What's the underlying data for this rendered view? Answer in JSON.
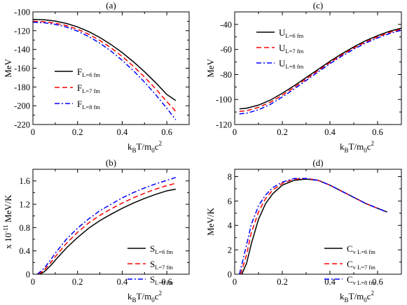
{
  "chart_data": [
    {
      "type": "line",
      "panel": "(a)",
      "title": "(a)",
      "ylabel": "MeV",
      "xlabel": {
        "main": "k",
        "sub1": "B",
        "mid": "T/m",
        "sub2": "0",
        "tail": "c",
        "sup": "2"
      },
      "xlim": [
        0,
        0.7
      ],
      "ylim": [
        -220,
        -100
      ],
      "xticks": [
        0,
        0.2,
        0.4,
        0.6
      ],
      "xtick_labels": [
        "0",
        "0.2",
        "0.4",
        "0.6"
      ],
      "yticks": [
        -220,
        -200,
        -180,
        -160,
        -140,
        -120,
        -100
      ],
      "ytick_labels": [
        "-220",
        "-200",
        "-180",
        "-160",
        "-140",
        "-120",
        "-100"
      ],
      "legend_position": "bottom-left",
      "series": [
        {
          "name": "F",
          "sub": "L=6 fm",
          "color": "#000000",
          "dash": "",
          "x": [
            0.0,
            0.05,
            0.1,
            0.15,
            0.2,
            0.25,
            0.3,
            0.35,
            0.4,
            0.45,
            0.5,
            0.55,
            0.6,
            0.64
          ],
          "y": [
            -108,
            -108.4,
            -109.8,
            -112.3,
            -116.0,
            -121.0,
            -127.3,
            -134.8,
            -143.4,
            -153.1,
            -163.8,
            -175.4,
            -188.0,
            -194.5
          ]
        },
        {
          "name": "F",
          "sub": "L=7 fm",
          "color": "#ff0000",
          "dash": "7,4",
          "x": [
            0.0,
            0.05,
            0.1,
            0.15,
            0.2,
            0.25,
            0.3,
            0.35,
            0.4,
            0.45,
            0.5,
            0.55,
            0.6,
            0.64
          ],
          "y": [
            -110,
            -110.5,
            -112.0,
            -114.6,
            -118.5,
            -123.8,
            -130.4,
            -138.3,
            -147.5,
            -157.9,
            -169.4,
            -182.0,
            -195.6,
            -206.0
          ]
        },
        {
          "name": "F",
          "sub": "L=8 fm",
          "color": "#0000ff",
          "dash": "7,3,2,3",
          "x": [
            0.0,
            0.05,
            0.1,
            0.15,
            0.2,
            0.25,
            0.3,
            0.35,
            0.4,
            0.45,
            0.5,
            0.55,
            0.6,
            0.64
          ],
          "y": [
            -111,
            -111.6,
            -113.3,
            -116.2,
            -120.5,
            -126.2,
            -133.3,
            -141.8,
            -151.6,
            -162.6,
            -174.8,
            -188.2,
            -202.7,
            -215.0
          ]
        }
      ]
    },
    {
      "type": "line",
      "panel": "(c)",
      "title": "(c)",
      "ylabel": "MeV",
      "xlabel": {
        "main": "k",
        "sub1": "B",
        "mid": "T/m",
        "sub2": "0",
        "tail": "c",
        "sup": "2"
      },
      "xlim": [
        0,
        0.7
      ],
      "ylim": [
        -120,
        -30
      ],
      "xticks": [
        0,
        0.2,
        0.4,
        0.6
      ],
      "xtick_labels": [
        "0",
        "0.2",
        "0.4",
        "0.6"
      ],
      "yticks": [
        -120,
        -100,
        -80,
        -60,
        -40
      ],
      "ytick_labels": [
        "-120",
        "-100",
        "-80",
        "-60",
        "-40"
      ],
      "legend_position": "top-left",
      "series": [
        {
          "name": "U",
          "sub": "L=6 fm",
          "color": "#000000",
          "dash": "",
          "x": [
            0.02,
            0.05,
            0.1,
            0.15,
            0.2,
            0.25,
            0.3,
            0.35,
            0.4,
            0.45,
            0.5,
            0.55,
            0.6,
            0.65,
            0.7
          ],
          "y": [
            -107.5,
            -107.0,
            -104.5,
            -100.5,
            -95.0,
            -89.0,
            -82.5,
            -76.0,
            -69.5,
            -63.5,
            -58.0,
            -53.0,
            -49.0,
            -45.5,
            -43.0
          ]
        },
        {
          "name": "U",
          "sub": "L=7 fm",
          "color": "#ff0000",
          "dash": "7,4",
          "x": [
            0.02,
            0.05,
            0.1,
            0.15,
            0.2,
            0.25,
            0.3,
            0.35,
            0.4,
            0.45,
            0.5,
            0.55,
            0.6,
            0.65,
            0.7
          ],
          "y": [
            -109.5,
            -109.0,
            -106.3,
            -102.2,
            -96.5,
            -90.3,
            -83.6,
            -77.0,
            -70.5,
            -64.4,
            -58.9,
            -54.0,
            -49.9,
            -46.4,
            -43.8
          ]
        },
        {
          "name": "U",
          "sub": "L=8 fm",
          "color": "#0000ff",
          "dash": "7,3,2,3",
          "x": [
            0.02,
            0.05,
            0.1,
            0.15,
            0.2,
            0.25,
            0.3,
            0.35,
            0.4,
            0.45,
            0.5,
            0.55,
            0.6,
            0.65,
            0.7
          ],
          "y": [
            -111.5,
            -111.0,
            -108.2,
            -103.9,
            -98.0,
            -91.6,
            -84.8,
            -78.0,
            -71.4,
            -65.3,
            -59.8,
            -54.9,
            -50.8,
            -47.3,
            -44.6
          ]
        }
      ]
    },
    {
      "type": "line",
      "panel": "(b)",
      "title": "(b)",
      "ylabel": "x 10⁻¹¹ MeV/K",
      "ylabel_parts": {
        "pre": "x 10",
        "sup": "-11",
        "post": " MeV/K"
      },
      "xlabel": {
        "main": "k",
        "sub1": "B",
        "mid": "T/m",
        "sub2": "0",
        "tail": "c",
        "sup": "2"
      },
      "xlim": [
        0,
        0.7
      ],
      "ylim": [
        0,
        1.8
      ],
      "xticks": [
        0,
        0.2,
        0.4,
        0.6
      ],
      "xtick_labels": [
        "0",
        "0.2",
        "0.4",
        "0.6"
      ],
      "yticks": [
        0,
        0.4,
        0.8,
        1.2,
        1.6
      ],
      "ytick_labels": [
        "0",
        "0.4",
        "0.8",
        "1.2",
        "1.6"
      ],
      "legend_position": "bottom-right",
      "series": [
        {
          "name": "S",
          "sub": "L=6 fm",
          "color": "#000000",
          "dash": "",
          "x": [
            0.03,
            0.05,
            0.08,
            0.1,
            0.15,
            0.2,
            0.25,
            0.3,
            0.35,
            0.4,
            0.45,
            0.5,
            0.55,
            0.6,
            0.64
          ],
          "y": [
            0.0,
            0.04,
            0.15,
            0.24,
            0.45,
            0.63,
            0.79,
            0.92,
            1.03,
            1.13,
            1.22,
            1.3,
            1.37,
            1.43,
            1.46
          ]
        },
        {
          "name": "S",
          "sub": "L=7 fm",
          "color": "#ff0000",
          "dash": "7,4",
          "x": [
            0.025,
            0.05,
            0.08,
            0.1,
            0.15,
            0.2,
            0.25,
            0.3,
            0.35,
            0.4,
            0.45,
            0.5,
            0.55,
            0.6,
            0.64
          ],
          "y": [
            0.0,
            0.07,
            0.2,
            0.3,
            0.53,
            0.72,
            0.88,
            1.01,
            1.12,
            1.22,
            1.31,
            1.39,
            1.46,
            1.52,
            1.56
          ]
        },
        {
          "name": "S",
          "sub": "L=8 fm",
          "color": "#0000ff",
          "dash": "7,3,2,3",
          "x": [
            0.02,
            0.05,
            0.08,
            0.1,
            0.15,
            0.2,
            0.25,
            0.3,
            0.35,
            0.4,
            0.45,
            0.5,
            0.55,
            0.6,
            0.64
          ],
          "y": [
            0.0,
            0.1,
            0.25,
            0.36,
            0.6,
            0.79,
            0.95,
            1.09,
            1.2,
            1.31,
            1.4,
            1.48,
            1.55,
            1.61,
            1.66
          ]
        }
      ]
    },
    {
      "type": "line",
      "panel": "(d)",
      "title": "(d)",
      "ylabel": "MeV/K",
      "xlabel": {
        "main": "k",
        "sub1": "B",
        "mid": "T/m",
        "sub2": "0",
        "tail": "c",
        "sup": "2"
      },
      "xlim": [
        0,
        0.7
      ],
      "ylim": [
        0,
        8.6
      ],
      "xticks": [
        0,
        0.2,
        0.4,
        0.6
      ],
      "xtick_labels": [
        "0",
        "0.2",
        "0.4",
        "0.6"
      ],
      "yticks": [
        0,
        2,
        4,
        6,
        8
      ],
      "ytick_labels": [
        "0",
        "2",
        "4",
        "6",
        "8"
      ],
      "legend_position": "bottom-right",
      "series": [
        {
          "name": "C",
          "sub": "v L=6 fm",
          "color": "#000000",
          "dash": "",
          "x": [
            0.03,
            0.05,
            0.07,
            0.1,
            0.13,
            0.16,
            0.2,
            0.25,
            0.3,
            0.35,
            0.4,
            0.45,
            0.5,
            0.55,
            0.6,
            0.64
          ],
          "y": [
            0.0,
            0.9,
            2.5,
            4.5,
            5.8,
            6.6,
            7.3,
            7.7,
            7.8,
            7.7,
            7.3,
            6.8,
            6.3,
            5.8,
            5.4,
            5.1
          ]
        },
        {
          "name": "C",
          "sub": "v L=7 fm",
          "color": "#ff0000",
          "dash": "7,4",
          "x": [
            0.025,
            0.05,
            0.07,
            0.1,
            0.13,
            0.16,
            0.2,
            0.25,
            0.3,
            0.35,
            0.4,
            0.45,
            0.5,
            0.55,
            0.6,
            0.64
          ],
          "y": [
            0.0,
            1.6,
            3.4,
            5.1,
            6.2,
            6.9,
            7.45,
            7.8,
            7.85,
            7.7,
            7.3,
            6.8,
            6.3,
            5.8,
            5.4,
            5.1
          ]
        },
        {
          "name": "C",
          "sub": "v L=8 fm",
          "color": "#0000ff",
          "dash": "7,3,2,3",
          "x": [
            0.02,
            0.05,
            0.07,
            0.1,
            0.13,
            0.16,
            0.2,
            0.25,
            0.3,
            0.35,
            0.4,
            0.45,
            0.5,
            0.55,
            0.6,
            0.64
          ],
          "y": [
            0.0,
            2.4,
            4.1,
            5.6,
            6.5,
            7.1,
            7.55,
            7.85,
            7.85,
            7.7,
            7.3,
            6.8,
            6.3,
            5.8,
            5.4,
            5.1
          ]
        }
      ]
    }
  ]
}
